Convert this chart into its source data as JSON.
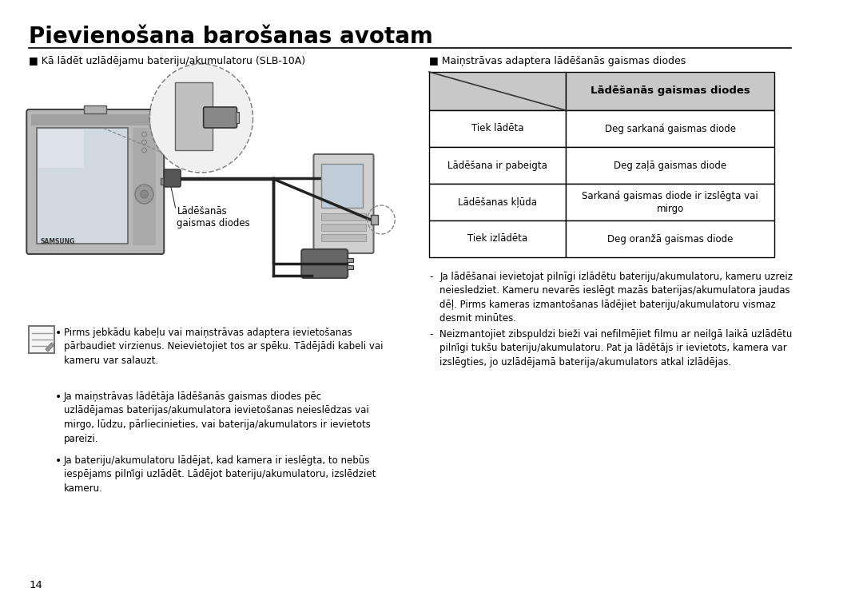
{
  "title": "Pievienošana barošanas avotam",
  "bg_color": "#ffffff",
  "title_color": "#000000",
  "title_fontsize": 20,
  "separator_color": "#000000",
  "left_section_header": "■ Kā lādēt uzlādējamu bateriju/akumulatoru (SLB-10A)",
  "right_section_header": "■ Maiņstrāvas adaptera lādēšanās gaismas diodes",
  "table_header": "Lādēšanās gaismas diodes",
  "table_rows": [
    [
      "Tiek lādēta",
      "Deg sarkaná gaismas diode"
    ],
    [
      "Lādēšana ir pabeigta",
      "Deg zaļā gaismas diode"
    ],
    [
      "Lādēšanas kļūda",
      "Sarkaná gaismas diode ir izslēgta vai\nmirgo"
    ],
    [
      "Tiek izlādēta",
      "Deg oranžā gaismas diode"
    ]
  ],
  "table_header_bg": "#c8c8c8",
  "table_border_color": "#000000",
  "label_ladešanas": "Lādēšanās\ngaismas diodes",
  "right_bullets": [
    "Ja lādēšanai ievietojat pilnīgi izlādētu bateriju/akumulatoru, kameru uzreiz\nneiesledziet. Kameru nevarēs ieslēgt mazās baterijas/akumulatora jaudas\ndēļ. Pirms kameras izmantošanas lādējiet bateriju/akumulatoru vismaz\ndesmit minūtes.",
    "Neizmantojiet zibspuldzi bieži vai nefilmējiet filmu ar neilgā laikā uzlādētu\npilnīgi tukšu bateriju/akumulatoru. Pat ja lādētājs ir ievietots, kamera var\nizslēgties, jo uzlādējamā baterija/akumulators atkal izlādējas."
  ],
  "left_bullets": [
    "Pirms jebkādu kabeļu vai maiņstrāvas adaptera ievietošanas\npārbaudiet virzienus. Neievietojiet tos ar spēku. Tādējādi kabeli vai\nkameru var salauzt.",
    "Ja maiņstrāvas lādētāja lādēšanās gaismas diodes pēc\nuzlādējamas baterijas/akumulatora ievietošanas neieslēdzas vai\nmirgo, lūdzu, pārliecinieties, vai baterija/akumulators ir ievietots\npareizi.",
    "Ja bateriju/akumulatoru lādējat, kad kamera ir ieslēgta, to nebūs\niespējams pilnīgi uzlādēt. Lādējot bateriju/akumulatoru, izslēdziet\nkameru."
  ],
  "page_number": "14",
  "font_color": "#000000"
}
